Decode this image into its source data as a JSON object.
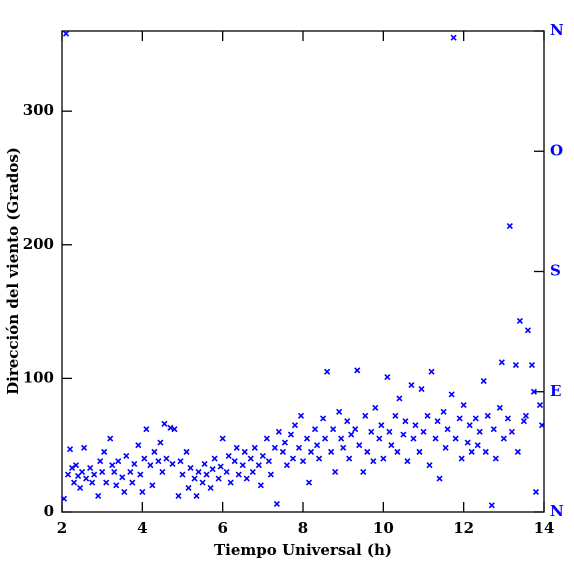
{
  "chart_data": {
    "type": "scatter",
    "xlabel": "Tiempo Universal (h)",
    "ylabel": "Dirección del viento (Grados)",
    "xlim": [
      2,
      14
    ],
    "xticks": [
      2,
      4,
      6,
      8,
      10,
      12,
      14
    ],
    "ylim": [
      0,
      360
    ],
    "yticks": [
      0,
      100,
      200,
      300
    ],
    "y2lim": [
      0,
      360
    ],
    "y2ticks": [
      {
        "value": 0,
        "label": "N"
      },
      {
        "value": 90,
        "label": "E"
      },
      {
        "value": 180,
        "label": "S"
      },
      {
        "value": 270,
        "label": "O"
      },
      {
        "value": 360,
        "label": "N"
      }
    ],
    "color": "#0000ff",
    "y2color": "#0000ff",
    "series": [
      {
        "color": "#0000ff",
        "x": [
          2.05,
          2.1,
          2.15,
          2.2,
          2.25,
          2.3,
          2.35,
          2.4,
          2.45,
          2.5,
          2.55,
          2.6,
          2.7,
          2.75,
          2.8,
          2.9,
          2.95,
          3.0,
          3.05,
          3.1,
          3.2,
          3.25,
          3.3,
          3.35,
          3.4,
          3.5,
          3.55,
          3.6,
          3.7,
          3.75,
          3.8,
          3.9,
          3.95,
          4.0,
          4.05,
          4.1,
          4.2,
          4.25,
          4.3,
          4.4,
          4.45,
          4.5,
          4.55,
          4.6,
          4.7,
          4.75,
          4.8,
          4.9,
          4.95,
          5.0,
          5.1,
          5.15,
          5.2,
          5.3,
          5.35,
          5.4,
          5.5,
          5.55,
          5.6,
          5.7,
          5.75,
          5.8,
          5.9,
          5.95,
          6.0,
          6.1,
          6.15,
          6.2,
          6.3,
          6.35,
          6.4,
          6.5,
          6.55,
          6.6,
          6.7,
          6.75,
          6.8,
          6.9,
          6.95,
          7.0,
          7.1,
          7.15,
          7.2,
          7.3,
          7.35,
          7.4,
          7.5,
          7.55,
          7.6,
          7.7,
          7.75,
          7.8,
          7.9,
          7.95,
          8.0,
          8.1,
          8.15,
          8.2,
          8.3,
          8.35,
          8.4,
          8.5,
          8.55,
          8.6,
          8.7,
          8.75,
          8.8,
          8.9,
          8.95,
          9.0,
          9.1,
          9.15,
          9.2,
          9.3,
          9.35,
          9.4,
          9.5,
          9.55,
          9.6,
          9.7,
          9.75,
          9.8,
          9.9,
          9.95,
          10.0,
          10.1,
          10.15,
          10.2,
          10.3,
          10.35,
          10.4,
          10.5,
          10.55,
          10.6,
          10.7,
          10.75,
          10.8,
          10.9,
          10.95,
          11.0,
          11.1,
          11.15,
          11.2,
          11.3,
          11.35,
          11.4,
          11.5,
          11.55,
          11.6,
          11.7,
          11.75,
          11.8,
          11.9,
          11.95,
          12.0,
          12.1,
          12.15,
          12.2,
          12.3,
          12.35,
          12.4,
          12.5,
          12.55,
          12.6,
          12.7,
          12.75,
          12.8,
          12.9,
          12.95,
          13.0,
          13.1,
          13.15,
          13.2,
          13.3,
          13.35,
          13.4,
          13.5,
          13.55,
          13.6,
          13.7,
          13.75,
          13.8,
          13.9,
          13.95
        ],
        "values": [
          10,
          358,
          28,
          47,
          33,
          22,
          35,
          27,
          18,
          30,
          48,
          25,
          33,
          22,
          28,
          12,
          38,
          30,
          45,
          22,
          55,
          35,
          30,
          20,
          38,
          26,
          15,
          42,
          30,
          22,
          36,
          50,
          28,
          15,
          40,
          62,
          35,
          20,
          45,
          38,
          52,
          30,
          66,
          40,
          63,
          36,
          62,
          12,
          38,
          28,
          45,
          18,
          33,
          25,
          12,
          30,
          22,
          36,
          28,
          18,
          32,
          40,
          25,
          34,
          55,
          30,
          42,
          22,
          38,
          48,
          28,
          35,
          45,
          25,
          40,
          30,
          48,
          35,
          20,
          42,
          55,
          38,
          28,
          48,
          6,
          60,
          45,
          52,
          35,
          58,
          40,
          65,
          48,
          72,
          38,
          55,
          22,
          45,
          62,
          50,
          40,
          70,
          55,
          105,
          45,
          62,
          30,
          75,
          55,
          48,
          68,
          40,
          58,
          62,
          106,
          50,
          30,
          72,
          45,
          60,
          38,
          78,
          55,
          65,
          40,
          101,
          60,
          50,
          72,
          45,
          85,
          58,
          68,
          38,
          95,
          55,
          65,
          45,
          92,
          60,
          72,
          35,
          105,
          55,
          68,
          25,
          75,
          48,
          62,
          88,
          355,
          55,
          70,
          40,
          80,
          52,
          65,
          45,
          70,
          50,
          60,
          98,
          45,
          72,
          5,
          62,
          40,
          78,
          112,
          55,
          70,
          214,
          60,
          110,
          45,
          143,
          68,
          72,
          136,
          110,
          90,
          15,
          80,
          65
        ]
      }
    ]
  }
}
